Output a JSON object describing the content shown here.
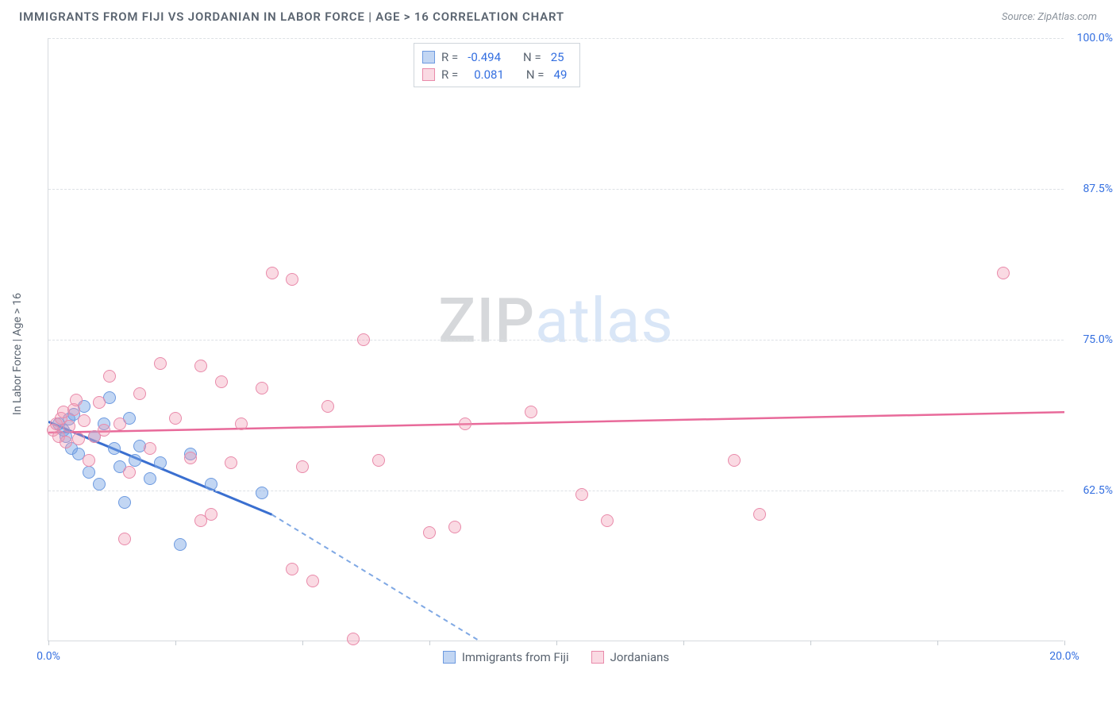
{
  "header": {
    "title": "IMMIGRANTS FROM FIJI VS JORDANIAN IN LABOR FORCE | AGE > 16 CORRELATION CHART",
    "source": "Source: ZipAtlas.com"
  },
  "chart": {
    "type": "scatter",
    "y_axis_label": "In Labor Force | Age > 16",
    "background_color": "#ffffff",
    "grid_color": "#dde1e5",
    "axis_color": "#d6dade",
    "label_color": "#346fe0",
    "xlim": [
      0,
      20
    ],
    "ylim": [
      50,
      100
    ],
    "x_tick_step": 2.5,
    "x_labels": [
      {
        "v": 0,
        "t": "0.0%"
      },
      {
        "v": 20,
        "t": "20.0%"
      }
    ],
    "y_labels": [
      {
        "v": 62.5,
        "t": "62.5%"
      },
      {
        "v": 75.0,
        "t": "75.0%"
      },
      {
        "v": 87.5,
        "t": "87.5%"
      },
      {
        "v": 100.0,
        "t": "100.0%"
      }
    ],
    "watermark": {
      "left": "ZIP",
      "right": "atlas"
    },
    "series": [
      {
        "name": "Immigrants from Fiji",
        "color_fill": "rgba(120,164,228,0.45)",
        "color_stroke": "#6d9ae0",
        "marker": "circle",
        "marker_size": 16,
        "r_label": "R =",
        "r_value": "-0.494",
        "n_label": "N =",
        "n_value": "25",
        "trend": {
          "x1": 0,
          "y1": 68.2,
          "x2": 4.4,
          "y2": 60.5,
          "stroke": "#3a6fd0",
          "width": 3,
          "dash": null,
          "ext_x2": 8.5,
          "ext_y2": 50.0,
          "ext_dash": "6,5",
          "ext_stroke": "#7fa8e4"
        },
        "points": [
          [
            0.2,
            68.0
          ],
          [
            0.3,
            67.5
          ],
          [
            0.35,
            67.0
          ],
          [
            0.4,
            68.4
          ],
          [
            0.45,
            66.0
          ],
          [
            0.5,
            68.8
          ],
          [
            0.6,
            65.5
          ],
          [
            0.7,
            69.5
          ],
          [
            0.8,
            64.0
          ],
          [
            0.9,
            67.0
          ],
          [
            1.0,
            63.0
          ],
          [
            1.1,
            68.0
          ],
          [
            1.2,
            70.2
          ],
          [
            1.3,
            66.0
          ],
          [
            1.4,
            64.5
          ],
          [
            1.5,
            61.5
          ],
          [
            1.6,
            68.5
          ],
          [
            1.7,
            65.0
          ],
          [
            1.8,
            66.2
          ],
          [
            2.0,
            63.5
          ],
          [
            2.2,
            64.8
          ],
          [
            2.6,
            58.0
          ],
          [
            2.8,
            65.5
          ],
          [
            3.2,
            63.0
          ],
          [
            4.2,
            62.3
          ]
        ]
      },
      {
        "name": "Jordanians",
        "color_fill": "rgba(240,150,175,0.35)",
        "color_stroke": "#e98aaa",
        "marker": "circle",
        "marker_size": 16,
        "r_label": "R =",
        "r_value": "0.081",
        "n_label": "N =",
        "n_value": "49",
        "trend": {
          "x1": 0,
          "y1": 67.3,
          "x2": 20,
          "y2": 69.0,
          "stroke": "#e86a9a",
          "width": 2.5,
          "dash": null
        },
        "points": [
          [
            0.1,
            67.5
          ],
          [
            0.15,
            68.0
          ],
          [
            0.2,
            67.0
          ],
          [
            0.25,
            68.5
          ],
          [
            0.3,
            69.0
          ],
          [
            0.35,
            66.5
          ],
          [
            0.4,
            67.8
          ],
          [
            0.5,
            69.2
          ],
          [
            0.55,
            70.0
          ],
          [
            0.6,
            66.8
          ],
          [
            0.7,
            68.3
          ],
          [
            0.8,
            65.0
          ],
          [
            0.9,
            67.0
          ],
          [
            1.0,
            69.8
          ],
          [
            1.1,
            67.5
          ],
          [
            1.2,
            72.0
          ],
          [
            1.4,
            68.0
          ],
          [
            1.5,
            58.5
          ],
          [
            1.6,
            64.0
          ],
          [
            1.8,
            70.5
          ],
          [
            2.0,
            66.0
          ],
          [
            2.2,
            73.0
          ],
          [
            2.5,
            68.5
          ],
          [
            2.8,
            65.2
          ],
          [
            3.0,
            72.8
          ],
          [
            3.0,
            60.0
          ],
          [
            3.2,
            60.5
          ],
          [
            3.4,
            71.5
          ],
          [
            3.6,
            64.8
          ],
          [
            3.8,
            68.0
          ],
          [
            4.2,
            71.0
          ],
          [
            4.4,
            80.5
          ],
          [
            4.8,
            80.0
          ],
          [
            4.8,
            56.0
          ],
          [
            5.0,
            64.5
          ],
          [
            5.5,
            69.5
          ],
          [
            6.0,
            50.2
          ],
          [
            6.2,
            75.0
          ],
          [
            6.5,
            65.0
          ],
          [
            7.5,
            59.0
          ],
          [
            8.0,
            59.5
          ],
          [
            8.2,
            68.0
          ],
          [
            9.5,
            69.0
          ],
          [
            10.5,
            62.2
          ],
          [
            11.0,
            60.0
          ],
          [
            13.5,
            65.0
          ],
          [
            14.0,
            60.5
          ],
          [
            18.8,
            80.5
          ],
          [
            5.2,
            55.0
          ]
        ]
      }
    ],
    "bottom_legend": [
      {
        "swatch": "blue",
        "label": "Immigrants from Fiji"
      },
      {
        "swatch": "pink",
        "label": "Jordanians"
      }
    ]
  }
}
